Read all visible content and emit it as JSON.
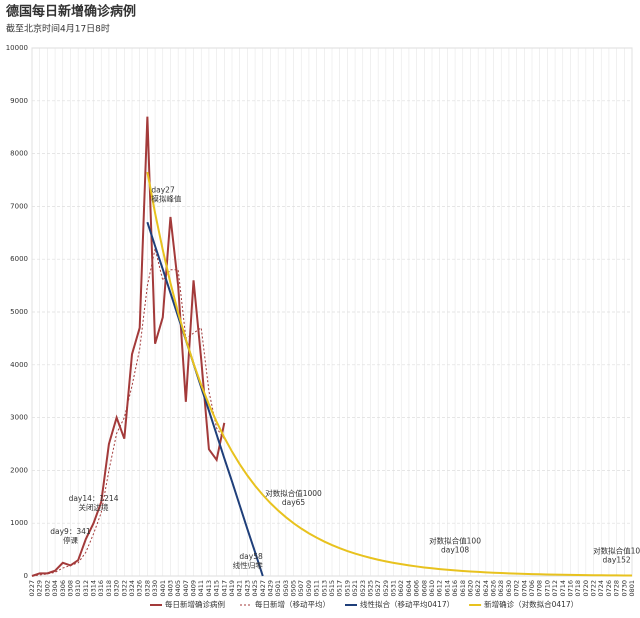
{
  "chart_data": {
    "type": "line",
    "title": "德国每日新增确诊病例",
    "subtitle": "截至北京时间4月17日8时",
    "categories": [
      "0227",
      "0229",
      "0302",
      "0304",
      "0306",
      "0308",
      "0310",
      "0312",
      "0314",
      "0316",
      "0318",
      "0320",
      "0322",
      "0324",
      "0326",
      "0328",
      "0330",
      "0401",
      "0403",
      "0405",
      "0407",
      "0409",
      "0411",
      "0413",
      "0415",
      "0417",
      "0419",
      "0421",
      "0423",
      "0425",
      "0427",
      "0429",
      "0501",
      "0503",
      "0505",
      "0507",
      "0509",
      "0511",
      "0513",
      "0515",
      "0517",
      "0519",
      "0521",
      "0523",
      "0525",
      "0527",
      "0529",
      "0531",
      "0602",
      "0604",
      "0606",
      "0608",
      "0610",
      "0612",
      "0614",
      "0616",
      "0618",
      "0620",
      "0622",
      "0624",
      "0626",
      "0628",
      "0630",
      "0702",
      "0704",
      "0706",
      "0708",
      "0710",
      "0712",
      "0714",
      "0716",
      "0718",
      "0720",
      "0722",
      "0724",
      "0726",
      "0728",
      "0730",
      "0801"
    ],
    "series": [
      {
        "name": "每日新增确诊病例",
        "color": "#a33a3a",
        "style": "solid",
        "values": [
          0,
          50,
          50,
          100,
          250,
          200,
          300,
          700,
          1000,
          1400,
          2500,
          3000,
          2600,
          4200,
          4700,
          8700,
          4400,
          4900,
          6800,
          5500,
          3300,
          5600,
          4100,
          2400,
          2200,
          2900,
          null,
          null,
          null,
          null,
          null,
          null,
          null,
          null,
          null,
          null,
          null,
          null,
          null,
          null,
          null,
          null,
          null,
          null,
          null,
          null,
          null,
          null,
          null,
          null,
          null,
          null,
          null,
          null,
          null,
          null,
          null,
          null,
          null,
          null,
          null,
          null,
          null,
          null,
          null,
          null,
          null,
          null,
          null,
          null,
          null,
          null,
          null,
          null,
          null,
          null,
          null,
          null,
          null
        ]
      },
      {
        "name": "每日新增（移动平均）",
        "color": "#a33a3a",
        "style": "dotted",
        "values": [
          0,
          20,
          40,
          70,
          150,
          200,
          250,
          450,
          800,
          1200,
          2000,
          2700,
          3000,
          3600,
          4300,
          5500,
          6200,
          5600,
          5800,
          5800,
          4500,
          4600,
          4700,
          3500,
          2800,
          2600,
          null,
          null,
          null,
          null,
          null,
          null,
          null,
          null,
          null,
          null,
          null,
          null,
          null,
          null,
          null,
          null,
          null,
          null,
          null,
          null,
          null,
          null,
          null,
          null,
          null,
          null,
          null,
          null,
          null,
          null,
          null,
          null,
          null,
          null,
          null,
          null,
          null,
          null,
          null,
          null,
          null,
          null,
          null,
          null,
          null,
          null,
          null,
          null,
          null,
          null,
          null,
          null,
          null
        ]
      },
      {
        "name": "线性拟合（移动平均0417）",
        "color": "#1f3f7a",
        "style": "solid",
        "values": [
          null,
          null,
          null,
          null,
          null,
          null,
          null,
          null,
          null,
          null,
          null,
          null,
          null,
          null,
          null,
          6700,
          6250,
          5810,
          5360,
          4910,
          4470,
          4020,
          3570,
          3130,
          2680,
          2230,
          1790,
          1340,
          890,
          450,
          0,
          null,
          null,
          null,
          null,
          null,
          null,
          null,
          null,
          null,
          null,
          null,
          null,
          null,
          null,
          null,
          null,
          null,
          null,
          null,
          null,
          null,
          null,
          null,
          null,
          null,
          null,
          null,
          null,
          null,
          null,
          null,
          null,
          null,
          null,
          null,
          null,
          null,
          null,
          null,
          null,
          null,
          null,
          null,
          null,
          null,
          null,
          null,
          null
        ]
      },
      {
        "name": "新增确诊（对数拟合0417）",
        "color": "#e8c21e",
        "style": "solid",
        "values": [
          null,
          null,
          null,
          null,
          null,
          null,
          null,
          null,
          null,
          null,
          null,
          null,
          null,
          null,
          null,
          7650,
          6873,
          6176,
          5549,
          4986,
          4480,
          4025,
          3616,
          3249,
          2919,
          2623,
          2357,
          2118,
          1903,
          1710,
          1536,
          1380,
          1240,
          1114,
          1000,
          899,
          808,
          726,
          652,
          586,
          527,
          473,
          425,
          382,
          343,
          308,
          277,
          249,
          224,
          201,
          181,
          162,
          146,
          131,
          118,
          106,
          95,
          85,
          77,
          69,
          62,
          56,
          50,
          45,
          40,
          36,
          33,
          29,
          26,
          24,
          21,
          19,
          17,
          15,
          14,
          12,
          11,
          10,
          9
        ]
      }
    ],
    "annotations": [
      [
        "day27",
        "模拟峰值"
      ],
      [
        "day14：1214",
        "关闭边境"
      ],
      [
        "day9：341",
        "停课"
      ],
      [
        "day58",
        "线性归零"
      ],
      [
        "对数拟合值1000",
        "day65"
      ],
      [
        "对数拟合值100",
        "day108"
      ],
      [
        "对数拟合值10",
        "day152"
      ]
    ],
    "ylim": [
      0,
      10000
    ],
    "yticks": [
      0,
      1000,
      2000,
      3000,
      4000,
      5000,
      6000,
      7000,
      8000,
      9000,
      10000
    ],
    "grid": true
  }
}
